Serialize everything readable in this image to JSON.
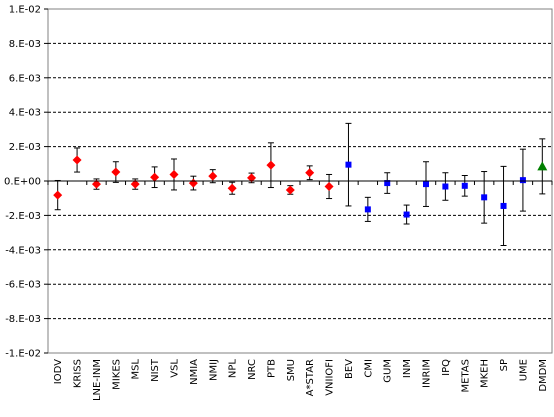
{
  "chart_data": {
    "type": "scatter",
    "title": "",
    "xlabel": "",
    "ylabel": "",
    "ylim": [
      -0.01,
      0.01
    ],
    "yticks": [
      0.01,
      0.008,
      0.006,
      0.004,
      0.002,
      0.0,
      -0.002,
      -0.004,
      -0.006,
      -0.008,
      -0.01
    ],
    "ytick_labels": [
      "1.E-02",
      "8.E-03",
      "6.E-03",
      "4.E-03",
      "2.E-03",
      "0.E+00",
      "-2.E-03",
      "-4.E-03",
      "-6.E-03",
      "-8.E-03",
      "-1.E-02"
    ],
    "grid": "horizontal dashed",
    "categories": [
      "IODV",
      "KRISS",
      "LNE-INM",
      "MIKES",
      "MSL",
      "NIST",
      "VSL",
      "NMIA",
      "NMIJ",
      "NPL",
      "NRC",
      "PTB",
      "SMU",
      "A*STAR",
      "VNIIOFI",
      "BEV",
      "CMI",
      "GUM",
      "INM",
      "INRIM",
      "IPQ",
      "METAS",
      "MKEH",
      "SP",
      "UME",
      "DMDM"
    ],
    "series": [
      {
        "marker": "diamond",
        "color": "#ff0000",
        "values": [
          -0.00082,
          0.00122,
          -0.00018,
          0.00052,
          -0.00018,
          0.00022,
          0.00038,
          -0.00012,
          0.00028,
          -0.00042,
          0.00018,
          0.00092,
          -0.00052,
          0.00048,
          -0.00032,
          null,
          null,
          null,
          null,
          null,
          null,
          null,
          null,
          null,
          null,
          null
        ],
        "errors": [
          0.00085,
          0.0007,
          0.0003,
          0.0006,
          0.0003,
          0.0006,
          0.0009,
          0.0004,
          0.00038,
          0.00035,
          0.00028,
          0.0013,
          0.00025,
          0.0004,
          0.0007,
          null,
          null,
          null,
          null,
          null,
          null,
          null,
          null,
          null,
          null,
          null
        ]
      },
      {
        "marker": "square",
        "color": "#0000ff",
        "values": [
          null,
          null,
          null,
          null,
          null,
          null,
          null,
          null,
          null,
          null,
          null,
          null,
          null,
          null,
          null,
          0.00095,
          -0.00165,
          -0.00012,
          -0.00195,
          -0.00018,
          -0.00032,
          -0.00028,
          -0.00095,
          -0.00145,
          5e-05,
          null
        ],
        "errors": [
          null,
          null,
          null,
          null,
          null,
          null,
          null,
          null,
          null,
          null,
          null,
          null,
          null,
          null,
          null,
          0.0024,
          0.0007,
          0.0006,
          0.00055,
          0.0013,
          0.0008,
          0.0006,
          0.0015,
          0.0023,
          0.0018,
          null
        ]
      },
      {
        "marker": "triangle",
        "color": "#008000",
        "values": [
          null,
          null,
          null,
          null,
          null,
          null,
          null,
          null,
          null,
          null,
          null,
          null,
          null,
          null,
          null,
          null,
          null,
          null,
          null,
          null,
          null,
          null,
          null,
          null,
          null,
          0.00085
        ],
        "errors": [
          null,
          null,
          null,
          null,
          null,
          null,
          null,
          null,
          null,
          null,
          null,
          null,
          null,
          null,
          null,
          null,
          null,
          null,
          null,
          null,
          null,
          null,
          null,
          null,
          null,
          0.0016
        ]
      }
    ]
  }
}
